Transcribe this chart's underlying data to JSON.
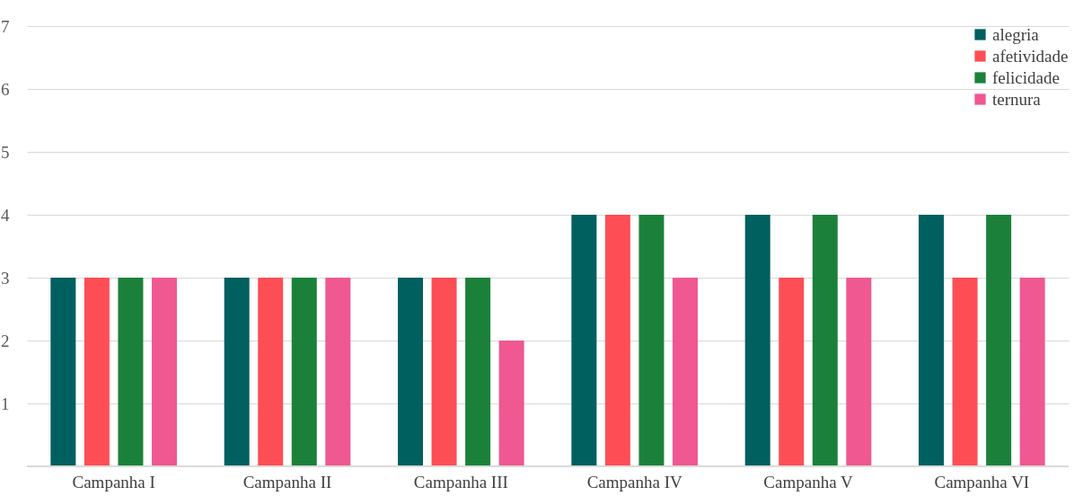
{
  "chart_data": {
    "type": "bar",
    "categories": [
      "Campanha I",
      "Campanha II",
      "Campanha III",
      "Campanha IV",
      "Campanha V",
      "Campanha VI"
    ],
    "series": [
      {
        "name": "alegria",
        "color": "#005f5f",
        "values": [
          3,
          3,
          3,
          4,
          4,
          4
        ]
      },
      {
        "name": "afetividade",
        "color": "#fd4e55",
        "values": [
          3,
          3,
          3,
          4,
          3,
          3
        ]
      },
      {
        "name": "felicidade",
        "color": "#1b813a",
        "values": [
          3,
          3,
          3,
          4,
          4,
          4
        ]
      },
      {
        "name": "ternura",
        "color": "#ef5890",
        "values": [
          3,
          3,
          2,
          3,
          3,
          3
        ]
      }
    ],
    "ylim": [
      0,
      7
    ],
    "yticks": [
      1,
      2,
      3,
      4,
      5,
      6,
      7
    ],
    "grid": "y",
    "legend": "top right"
  }
}
